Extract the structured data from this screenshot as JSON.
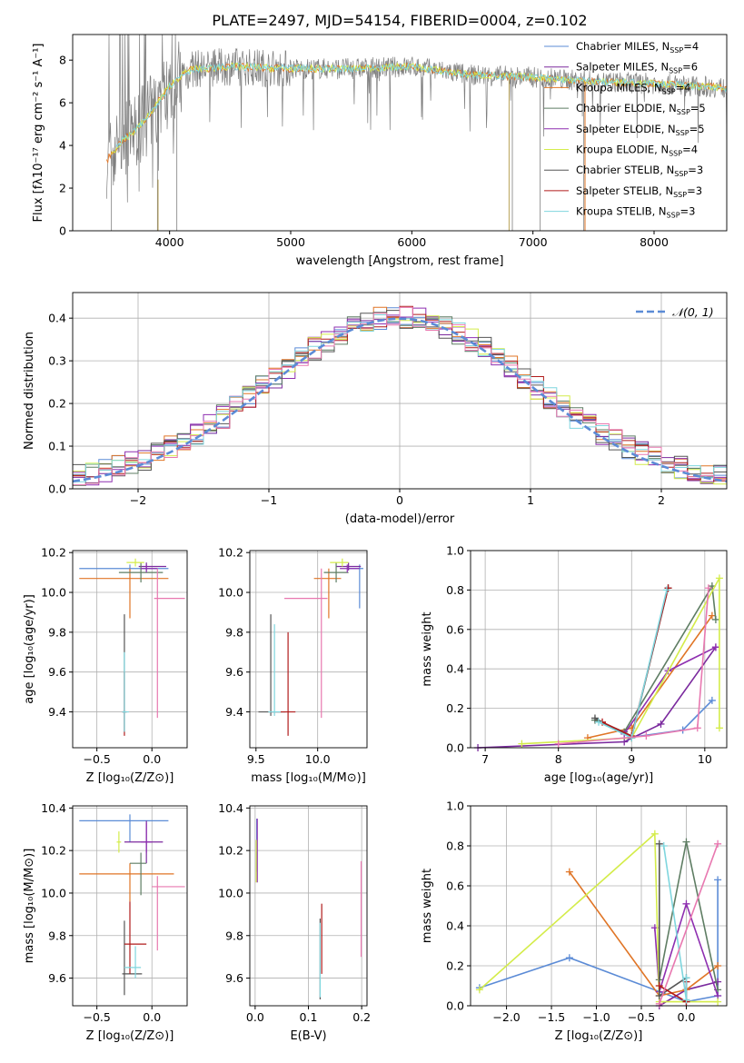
{
  "figure": {
    "title": "PLATE=2497, MJD=54154, FIBERID=0004, z=0.102"
  },
  "colors": {
    "Chabrier MILES": "#5b8bd6",
    "Salpeter MILES": "#7b2a9e",
    "Kroupa MILES": "#e07526",
    "Chabrier ELODIE": "#5e7d63",
    "Salpeter ELODIE": "#8e2fb0",
    "Kroupa ELODIE": "#d4ec4a",
    "Chabrier STELIB": "#555555",
    "Salpeter STELIB": "#b01b1b",
    "Kroupa STELIB": "#7fd6de",
    "Observed": "#7f7f7f",
    "Pink": "#e878b0"
  },
  "chart_data": [
    {
      "id": "spectrum",
      "type": "line",
      "title": "PLATE=2497, MJD=54154, FIBERID=0004, z=0.102",
      "xlabel": "wavelength [Angstrom, rest frame]",
      "ylabel": "Flux [fλ10⁻¹⁷ erg cm⁻² s⁻¹ A⁻¹]",
      "xlim": [
        3200,
        8600
      ],
      "ylim": [
        0,
        9.2
      ],
      "xticks": [
        4000,
        5000,
        6000,
        7000,
        8000
      ],
      "yticks": [
        0,
        2,
        4,
        6,
        8
      ],
      "grid": false,
      "legend_position": "right",
      "legend": [
        {
          "name": "Chabrier MILES",
          "nssp": "4"
        },
        {
          "name": "Salpeter MILES",
          "nssp": "6"
        },
        {
          "name": "Kroupa MILES",
          "nssp": "4"
        },
        {
          "name": "Chabrier ELODIE",
          "nssp": "5"
        },
        {
          "name": "Salpeter ELODIE",
          "nssp": "5"
        },
        {
          "name": "Kroupa ELODIE",
          "nssp": "4"
        },
        {
          "name": "Chabrier STELIB",
          "nssp": "3"
        },
        {
          "name": "Salpeter STELIB",
          "nssp": "3"
        },
        {
          "name": "Kroupa STELIB",
          "nssp": "3"
        }
      ],
      "continuum": {
        "x": [
          3480,
          3600,
          3700,
          3800,
          3900,
          4000,
          4100,
          4200,
          4300,
          4500,
          5000,
          5500,
          6000,
          6500,
          7000,
          7500,
          8000,
          8600
        ],
        "y": [
          3.3,
          4.2,
          4.6,
          5.2,
          6.0,
          6.8,
          7.3,
          7.6,
          7.6,
          7.7,
          7.6,
          7.6,
          7.7,
          7.3,
          7.2,
          7.0,
          6.9,
          6.7
        ]
      }
    },
    {
      "id": "residuals",
      "type": "histogram",
      "xlabel": "(data-model)/error",
      "ylabel": "Normed distribution",
      "xlim": [
        -2.5,
        2.5
      ],
      "ylim": [
        0,
        0.46
      ],
      "xticks": [
        -2,
        -1,
        0,
        1,
        2
      ],
      "yticks": [
        0.0,
        0.1,
        0.2,
        0.3,
        0.4
      ],
      "grid": true,
      "legend_position": "top-right",
      "legend": [
        "𝒩(0, 1)"
      ]
    },
    {
      "id": "age-vs-Z",
      "type": "errorbar",
      "xlabel": "Z [log₁₀(Z/Z⊙)]",
      "ylabel": "age  [log₁₀(age/yr)]",
      "xlim": [
        -0.72,
        0.32
      ],
      "ylim": [
        9.22,
        10.21
      ],
      "xticks": [
        -0.5,
        0.0
      ],
      "yticks": [
        9.4,
        9.6,
        9.8,
        10.0,
        10.2
      ],
      "grid": true,
      "points": [
        {
          "model": "Chabrier MILES",
          "x": -0.2,
          "xerr": [
            0.46,
            0.35
          ],
          "y": 10.12,
          "yerr": [
            0.02,
            0.02
          ]
        },
        {
          "model": "Salpeter MILES",
          "x": -0.05,
          "xerr": [
            0.07,
            0.18
          ],
          "y": 10.13,
          "yerr": [
            0.02,
            0.02
          ]
        },
        {
          "model": "Kroupa MILES",
          "x": -0.2,
          "xerr": [
            0.46,
            0.35
          ],
          "y": 10.07,
          "yerr": [
            0.2,
            0.05
          ]
        },
        {
          "model": "Chabrier ELODIE",
          "x": -0.1,
          "xerr": [
            0.2,
            0.2
          ],
          "y": 10.1,
          "yerr": [
            0.05,
            0.05
          ]
        },
        {
          "model": "Salpeter ELODIE",
          "x": -0.05,
          "xerr": [
            0.05,
            0.1
          ],
          "y": 10.12,
          "yerr": [
            0.02,
            0.02
          ]
        },
        {
          "model": "Kroupa ELODIE",
          "x": -0.15,
          "xerr": [
            0.08,
            0.08
          ],
          "y": 10.15,
          "yerr": [
            0.02,
            0.02
          ]
        },
        {
          "model": "Chabrier STELIB",
          "x": -0.25,
          "xerr": [
            0.02,
            0.02
          ],
          "y": 9.4,
          "yerr": [
            0.1,
            0.49
          ]
        },
        {
          "model": "Salpeter STELIB",
          "x": -0.25,
          "xerr": [
            0.02,
            0.02
          ],
          "y": 9.4,
          "yerr": [
            0.12,
            0.2
          ]
        },
        {
          "model": "Kroupa STELIB",
          "x": -0.25,
          "xerr": [
            0.02,
            0.04
          ],
          "y": 9.4,
          "yerr": [
            0.1,
            0.3
          ]
        },
        {
          "model": "Pink",
          "x": 0.05,
          "xerr": [
            0.03,
            0.25
          ],
          "y": 9.97,
          "yerr": [
            0.6,
            0.15
          ]
        }
      ]
    },
    {
      "id": "age-vs-mass",
      "type": "errorbar",
      "xlabel": "mass [log₁₀(M/M⊙)]",
      "ylabel": "",
      "xlim": [
        9.45,
        10.4
      ],
      "ylim": [
        9.22,
        10.21
      ],
      "xticks": [
        9.5,
        10.0
      ],
      "yticks": [
        9.4,
        9.6,
        9.8,
        10.0,
        10.2
      ],
      "grid": true,
      "points": [
        {
          "model": "Chabrier MILES",
          "x": 10.34,
          "xerr": [
            0.1,
            0.03
          ],
          "y": 10.12,
          "yerr": [
            0.2,
            0.02
          ]
        },
        {
          "model": "Salpeter MILES",
          "x": 10.25,
          "xerr": [
            0.1,
            0.1
          ],
          "y": 10.13,
          "yerr": [
            0.02,
            0.02
          ]
        },
        {
          "model": "Kroupa MILES",
          "x": 10.09,
          "xerr": [
            0.12,
            0.1
          ],
          "y": 10.07,
          "yerr": [
            0.2,
            0.05
          ]
        },
        {
          "model": "Chabrier ELODIE",
          "x": 10.15,
          "xerr": [
            0.1,
            0.1
          ],
          "y": 10.1,
          "yerr": [
            0.05,
            0.05
          ]
        },
        {
          "model": "Salpeter ELODIE",
          "x": 10.24,
          "xerr": [
            0.06,
            0.1
          ],
          "y": 10.12,
          "yerr": [
            0.02,
            0.02
          ]
        },
        {
          "model": "Kroupa ELODIE",
          "x": 10.2,
          "xerr": [
            0.1,
            0.05
          ],
          "y": 10.15,
          "yerr": [
            0.02,
            0.02
          ]
        },
        {
          "model": "Chabrier STELIB",
          "x": 9.62,
          "xerr": [
            0.1,
            0.12
          ],
          "y": 9.4,
          "yerr": [
            0.02,
            0.49
          ]
        },
        {
          "model": "Salpeter STELIB",
          "x": 9.76,
          "xerr": [
            0.14,
            0.06
          ],
          "y": 9.4,
          "yerr": [
            0.12,
            0.4
          ]
        },
        {
          "model": "Kroupa STELIB",
          "x": 9.65,
          "xerr": [
            0.05,
            0.05
          ],
          "y": 9.4,
          "yerr": [
            0.02,
            0.44
          ]
        },
        {
          "model": "Pink",
          "x": 10.03,
          "xerr": [
            0.3,
            0.05
          ],
          "y": 9.97,
          "yerr": [
            0.6,
            0.15
          ]
        }
      ]
    },
    {
      "id": "weight-vs-age",
      "type": "line",
      "xlabel": "age  [log₁₀(age/yr)]",
      "ylabel": "mass weight",
      "xlim": [
        6.8,
        10.3
      ],
      "ylim": [
        0,
        1.0
      ],
      "xticks": [
        7,
        8,
        9,
        10
      ],
      "yticks": [
        0.0,
        0.2,
        0.4,
        0.6,
        0.8,
        1.0
      ],
      "grid": true,
      "series": [
        {
          "model": "Chabrier MILES",
          "x": [
            8.95,
            9.7,
            10.1
          ],
          "y": [
            0.05,
            0.09,
            0.24
          ]
        },
        {
          "model": "Salpeter MILES",
          "x": [
            6.9,
            8.9,
            9.4,
            10.15
          ],
          "y": [
            0.0,
            0.03,
            0.12,
            0.51
          ]
        },
        {
          "model": "Kroupa MILES",
          "x": [
            8.4,
            9.0,
            10.1
          ],
          "y": [
            0.05,
            0.1,
            0.67
          ]
        },
        {
          "model": "Chabrier ELODIE",
          "x": [
            8.5,
            8.9,
            10.1,
            10.15
          ],
          "y": [
            0.14,
            0.08,
            0.82,
            0.65
          ]
        },
        {
          "model": "Salpeter ELODIE",
          "x": [
            8.9,
            9.5,
            10.15
          ],
          "y": [
            0.07,
            0.39,
            0.51
          ]
        },
        {
          "model": "Kroupa ELODIE",
          "x": [
            7.5,
            9.0,
            10.2,
            10.2
          ],
          "y": [
            0.02,
            0.05,
            0.86,
            0.1
          ]
        },
        {
          "model": "Chabrier STELIB",
          "x": [
            8.5,
            9.0,
            9.5
          ],
          "y": [
            0.15,
            0.05,
            0.81
          ]
        },
        {
          "model": "Salpeter STELIB",
          "x": [
            8.6,
            9.0,
            9.5
          ],
          "y": [
            0.13,
            0.06,
            0.81
          ]
        },
        {
          "model": "Kroupa STELIB",
          "x": [
            8.55,
            9.0,
            9.48
          ],
          "y": [
            0.13,
            0.05,
            0.8
          ]
        },
        {
          "model": "Pink",
          "x": [
            8.0,
            9.2,
            9.9,
            10.05
          ],
          "y": [
            0.02,
            0.06,
            0.1,
            0.81
          ]
        }
      ]
    },
    {
      "id": "mass-vs-Z",
      "type": "errorbar",
      "xlabel": "Z [log₁₀(Z/Z⊙)]",
      "ylabel": "mass [log₁₀(M/M⊙)]",
      "xlim": [
        -0.72,
        0.32
      ],
      "ylim": [
        9.47,
        10.41
      ],
      "xticks": [
        -0.5,
        0.0
      ],
      "yticks": [
        9.6,
        9.8,
        10.0,
        10.2,
        10.4
      ],
      "grid": true,
      "points": [
        {
          "model": "Chabrier MILES",
          "x": -0.2,
          "xerr": [
            0.46,
            0.35
          ],
          "y": 10.34,
          "yerr": [
            0.1,
            0.03
          ]
        },
        {
          "model": "Salpeter MILES",
          "x": -0.05,
          "xerr": [
            0.2,
            0.15
          ],
          "y": 10.24,
          "yerr": [
            0.1,
            0.1
          ]
        },
        {
          "model": "Kroupa MILES",
          "x": -0.2,
          "xerr": [
            0.46,
            0.4
          ],
          "y": 10.09,
          "yerr": [
            0.13,
            0.05
          ]
        },
        {
          "model": "Chabrier ELODIE",
          "x": -0.1,
          "xerr": [
            0.1,
            0.05
          ],
          "y": 10.14,
          "yerr": [
            0.15,
            0.05
          ]
        },
        {
          "model": "Salpeter ELODIE",
          "x": -0.05,
          "xerr": [
            0.05,
            0.05
          ],
          "y": 10.24,
          "yerr": [
            0.05,
            0.09
          ]
        },
        {
          "model": "Kroupa ELODIE",
          "x": -0.3,
          "xerr": [
            0.02,
            0.02
          ],
          "y": 10.24,
          "yerr": [
            0.05,
            0.05
          ]
        },
        {
          "model": "Chabrier STELIB",
          "x": -0.25,
          "xerr": [
            0.02,
            0.16
          ],
          "y": 9.62,
          "yerr": [
            0.1,
            0.25
          ]
        },
        {
          "model": "Salpeter STELIB",
          "x": -0.2,
          "xerr": [
            0.05,
            0.15
          ],
          "y": 9.76,
          "yerr": [
            0.14,
            0.2
          ]
        },
        {
          "model": "Kroupa STELIB",
          "x": -0.15,
          "xerr": [
            0.1,
            0.05
          ],
          "y": 9.65,
          "yerr": [
            0.05,
            0.1
          ]
        },
        {
          "model": "Pink",
          "x": 0.05,
          "xerr": [
            0.05,
            0.25
          ],
          "y": 10.03,
          "yerr": [
            0.3,
            0.05
          ]
        }
      ]
    },
    {
      "id": "mass-vs-EBV",
      "type": "errorbar",
      "xlabel": "E(B-V)",
      "ylabel": "",
      "xlim": [
        -0.01,
        0.21
      ],
      "ylim": [
        9.47,
        10.41
      ],
      "xticks": [
        0.0,
        0.1,
        0.2
      ],
      "yticks": [
        9.6,
        9.8,
        10.0,
        10.2,
        10.4
      ],
      "grid": true,
      "points": [
        {
          "model": "Chabrier MILES",
          "x": 0.003,
          "y": 10.2,
          "yerr": [
            0.1,
            0.15
          ]
        },
        {
          "model": "Salpeter ELODIE",
          "x": 0.004,
          "y": 10.2,
          "yerr": [
            0.15,
            0.15
          ]
        },
        {
          "model": "Kroupa ELODIE",
          "x": 0.002,
          "y": 10.15,
          "yerr": [
            0.1,
            0.1
          ]
        },
        {
          "model": "Chabrier STELIB",
          "x": 0.122,
          "y": 9.7,
          "yerr": [
            0.2,
            0.18
          ]
        },
        {
          "model": "Salpeter STELIB",
          "x": 0.125,
          "y": 9.76,
          "yerr": [
            0.14,
            0.19
          ]
        },
        {
          "model": "Kroupa STELIB",
          "x": 0.122,
          "y": 9.7,
          "yerr": [
            0.19,
            0.16
          ]
        },
        {
          "model": "Pink",
          "x": 0.199,
          "y": 9.95,
          "yerr": [
            0.25,
            0.2
          ]
        }
      ]
    },
    {
      "id": "weight-vs-Z",
      "type": "line",
      "xlabel": "Z [log₁₀(Z/Z⊙)]",
      "ylabel": "mass weight",
      "xlim": [
        -2.4,
        0.45
      ],
      "ylim": [
        0,
        1.0
      ],
      "xticks": [
        -2.0,
        -1.5,
        -1.0,
        -0.5,
        0.0
      ],
      "yticks": [
        0.0,
        0.2,
        0.4,
        0.6,
        0.8,
        1.0
      ],
      "grid": true,
      "series": [
        {
          "model": "Chabrier MILES",
          "x": [
            -2.3,
            -1.3,
            0.0,
            0.35,
            0.35
          ],
          "y": [
            0.09,
            0.24,
            0.02,
            0.05,
            0.63
          ]
        },
        {
          "model": "Salpeter MILES",
          "x": [
            -0.3,
            0.0,
            0.35
          ],
          "y": [
            0.0,
            0.08,
            0.12
          ]
        },
        {
          "model": "Kroupa MILES",
          "x": [
            -1.3,
            -0.3,
            0.0,
            0.35
          ],
          "y": [
            0.67,
            0.05,
            0.08,
            0.2
          ]
        },
        {
          "model": "Chabrier ELODIE",
          "x": [
            -0.3,
            0.0,
            0.35
          ],
          "y": [
            0.13,
            0.82,
            0.08
          ]
        },
        {
          "model": "Salpeter ELODIE",
          "x": [
            -0.35,
            -0.3,
            0.0,
            0.35
          ],
          "y": [
            0.39,
            0.07,
            0.51,
            0.05
          ]
        },
        {
          "model": "Kroupa ELODIE",
          "x": [
            -2.3,
            -0.35,
            -0.3,
            0.35
          ],
          "y": [
            0.08,
            0.86,
            0.02,
            0.02
          ]
        },
        {
          "model": "Chabrier STELIB",
          "x": [
            -0.3,
            -0.3,
            0.0
          ],
          "y": [
            0.81,
            0.05,
            0.14
          ]
        },
        {
          "model": "Salpeter STELIB",
          "x": [
            -0.3,
            0.0,
            0.0
          ],
          "y": [
            0.1,
            0.02,
            0.12
          ]
        },
        {
          "model": "Kroupa STELIB",
          "x": [
            -0.25,
            0.0,
            0.0
          ],
          "y": [
            0.8,
            0.03,
            0.14
          ]
        },
        {
          "model": "Pink",
          "x": [
            -0.3,
            0.35
          ],
          "y": [
            0.01,
            0.81
          ]
        }
      ]
    }
  ]
}
